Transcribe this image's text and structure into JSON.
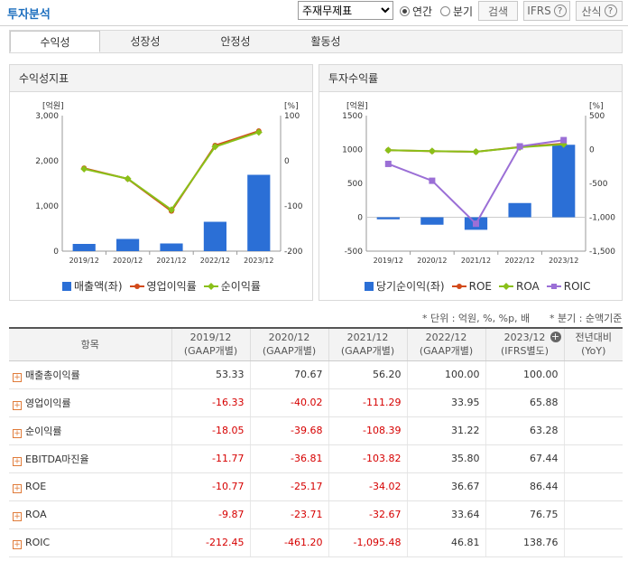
{
  "header": {
    "title": "투자분석",
    "select_value": "주재무제표",
    "radio_annual": "연간",
    "radio_quarter": "분기",
    "search_btn": "검색",
    "ifrs_btn": "IFRS",
    "formula_btn": "산식",
    "help_icon": "?"
  },
  "tabs": [
    "수익성",
    "성장성",
    "안정성",
    "활동성"
  ],
  "left_panel": {
    "title": "수익성지표",
    "left_unit": "[억원]",
    "right_unit": "[%]",
    "legend": [
      "매출액(좌)",
      "영업이익률",
      "순이익률"
    ]
  },
  "right_panel": {
    "title": "투자수익률",
    "left_unit": "[억원]",
    "right_unit": "[%]",
    "legend": [
      "당기순이익(좌)",
      "ROE",
      "ROA",
      "ROIC"
    ]
  },
  "colors": {
    "bar": "#2b6fd6",
    "op_margin": "#d24a1a",
    "net_margin": "#8ac019",
    "roe": "#d24a1a",
    "roa": "#8ac019",
    "roic": "#9b6fd6",
    "negative": "#d60000",
    "title": "#1d6fbf"
  },
  "notes": {
    "unit": "* 단위 : 억원, %, %p, 배",
    "quarter": "* 분기 : 순액기준"
  },
  "chart_data": [
    {
      "type": "bar",
      "title": "수익성지표",
      "categories": [
        "2019/12",
        "2020/12",
        "2021/12",
        "2022/12",
        "2023/12"
      ],
      "left_ylim": [
        0,
        3000
      ],
      "left_ticks": [
        "3,000",
        "2,000",
        "1,000",
        "0"
      ],
      "right_ylim": [
        -200,
        100
      ],
      "right_ticks": [
        "100",
        "0",
        "-100",
        "-200"
      ],
      "series": [
        {
          "name": "매출액(좌)",
          "type": "bar",
          "axis": "left",
          "values": [
            160,
            270,
            170,
            650,
            1690
          ]
        },
        {
          "name": "영업이익률",
          "type": "line",
          "axis": "right",
          "values": [
            -16.33,
            -40.02,
            -111.29,
            33.95,
            65.88
          ]
        },
        {
          "name": "순이익률",
          "type": "line",
          "axis": "right",
          "values": [
            -18.05,
            -39.68,
            -108.39,
            31.22,
            63.28
          ]
        }
      ]
    },
    {
      "type": "bar",
      "title": "투자수익률",
      "categories": [
        "2019/12",
        "2020/12",
        "2021/12",
        "2022/12",
        "2023/12"
      ],
      "left_ylim": [
        -500,
        1500
      ],
      "left_ticks": [
        "1500",
        "1000",
        "500",
        "0",
        "-500"
      ],
      "right_ylim": [
        -1500,
        500
      ],
      "right_ticks": [
        "500",
        "0",
        "-500",
        "-1,000",
        "-1,500"
      ],
      "series": [
        {
          "name": "당기순이익(좌)",
          "type": "bar",
          "axis": "left",
          "values": [
            -30,
            -110,
            -185,
            210,
            1070
          ]
        },
        {
          "name": "ROE",
          "type": "line",
          "axis": "right",
          "values": [
            -10.77,
            -25.17,
            -34.02,
            36.67,
            86.44
          ]
        },
        {
          "name": "ROA",
          "type": "line",
          "axis": "right",
          "values": [
            -9.87,
            -23.71,
            -32.67,
            33.64,
            76.75
          ]
        },
        {
          "name": "ROIC",
          "type": "line",
          "axis": "right",
          "values": [
            -212.45,
            -461.2,
            -1095.48,
            46.81,
            138.76
          ]
        }
      ]
    }
  ],
  "table": {
    "header_item": "항목",
    "columns": [
      {
        "line1": "2019/12",
        "line2": "(GAAP개별)"
      },
      {
        "line1": "2020/12",
        "line2": "(GAAP개별)"
      },
      {
        "line1": "2021/12",
        "line2": "(GAAP개별)"
      },
      {
        "line1": "2022/12",
        "line2": "(GAAP개별)"
      },
      {
        "line1": "2023/12",
        "line2": "(IFRS별도)"
      },
      {
        "line1": "전년대비",
        "line2": "(YoY)"
      }
    ],
    "rows": [
      {
        "label": "매출총이익률",
        "values": [
          "53.33",
          "70.67",
          "56.20",
          "100.00",
          "100.00",
          ""
        ]
      },
      {
        "label": "영업이익률",
        "values": [
          "-16.33",
          "-40.02",
          "-111.29",
          "33.95",
          "65.88",
          ""
        ]
      },
      {
        "label": "순이익률",
        "values": [
          "-18.05",
          "-39.68",
          "-108.39",
          "31.22",
          "63.28",
          ""
        ]
      },
      {
        "label": "EBITDA마진율",
        "values": [
          "-11.77",
          "-36.81",
          "-103.82",
          "35.80",
          "67.44",
          ""
        ]
      },
      {
        "label": "ROE",
        "values": [
          "-10.77",
          "-25.17",
          "-34.02",
          "36.67",
          "86.44",
          ""
        ]
      },
      {
        "label": "ROA",
        "values": [
          "-9.87",
          "-23.71",
          "-32.67",
          "33.64",
          "76.75",
          ""
        ]
      },
      {
        "label": "ROIC",
        "values": [
          "-212.45",
          "-461.20",
          "-1,095.48",
          "46.81",
          "138.76",
          ""
        ]
      }
    ]
  }
}
